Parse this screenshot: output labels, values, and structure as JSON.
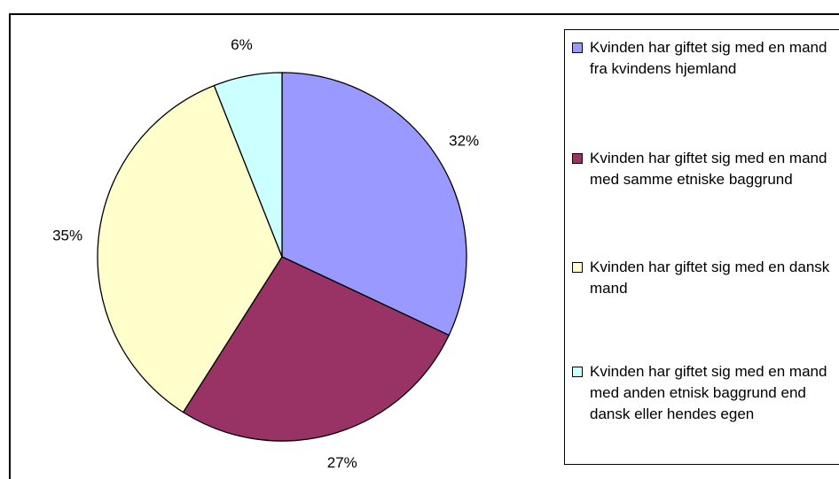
{
  "chart_data": {
    "type": "pie",
    "categories": [
      "Kvinden har giftet sig med en mand fra kvindens hjemland",
      "Kvinden har giftet sig med en mand med samme etniske baggrund",
      "Kvinden har giftet sig med en dansk mand",
      "Kvinden har giftet sig med en mand med anden etnisk baggrund end dansk eller hendes egen"
    ],
    "values": [
      32,
      27,
      35,
      6
    ],
    "value_labels": [
      "32%",
      "27%",
      "35%",
      "6%"
    ],
    "colors": [
      "#9999ff",
      "#993366",
      "#ffffcc",
      "#ccffff"
    ],
    "legend": "right"
  }
}
